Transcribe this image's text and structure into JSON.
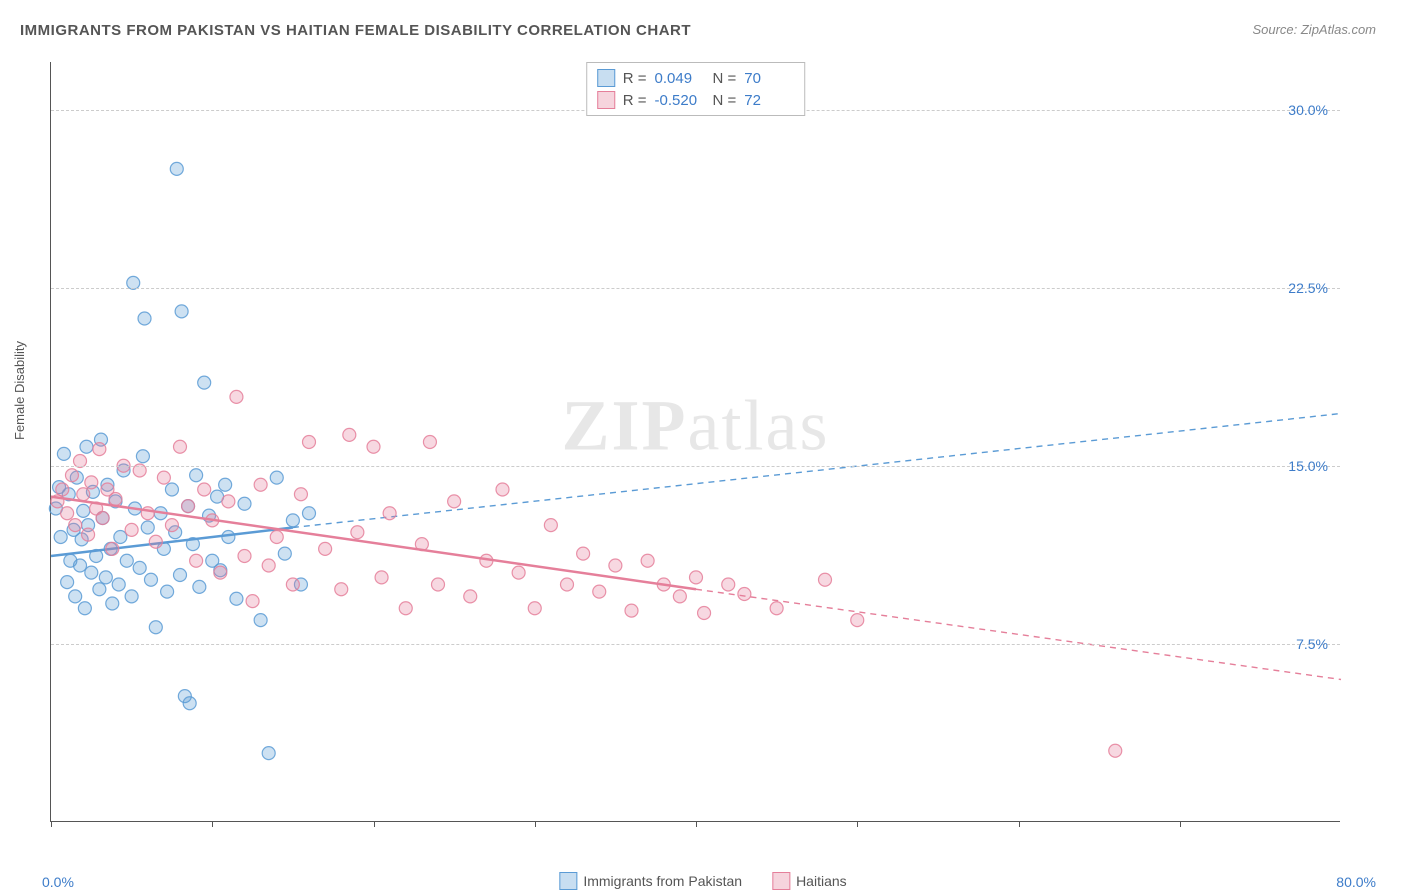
{
  "chart": {
    "title": "IMMIGRANTS FROM PAKISTAN VS HAITIAN FEMALE DISABILITY CORRELATION CHART",
    "source": "Source: ZipAtlas.com",
    "y_axis_title": "Female Disability",
    "watermark_bold": "ZIP",
    "watermark_light": "atlas",
    "background_color": "#ffffff",
    "axis_color": "#555555",
    "grid_color": "#cccccc",
    "value_color": "#3d7cc9",
    "xlim": [
      0,
      80
    ],
    "ylim": [
      0,
      32
    ],
    "x_min_label": "0.0%",
    "x_max_label": "80.0%",
    "x_ticks_at": [
      0,
      10,
      20,
      30,
      40,
      50,
      60,
      70
    ],
    "y_gridlines": [
      {
        "value": 7.5,
        "label": "7.5%"
      },
      {
        "value": 15.0,
        "label": "15.0%"
      },
      {
        "value": 22.5,
        "label": "22.5%"
      },
      {
        "value": 30.0,
        "label": "30.0%"
      }
    ],
    "marker_radius": 6.5,
    "marker_fill_opacity": 0.3,
    "marker_stroke_opacity": 0.85,
    "marker_stroke_width": 1.2,
    "trend_line_width": 2.5,
    "trend_dash_width": 1.4,
    "series": [
      {
        "name": "Immigrants from Pakistan",
        "color": "#5b9bd5",
        "R_label": "R =",
        "R_value": "0.049",
        "N_label": "N =",
        "N_value": "70",
        "trend_solid": {
          "x1": 0,
          "y1": 11.2,
          "x2": 15,
          "y2": 12.4
        },
        "trend_dash": {
          "x1": 15,
          "y1": 12.4,
          "x2": 80,
          "y2": 17.2
        },
        "points": [
          [
            0.3,
            13.2
          ],
          [
            0.5,
            14.1
          ],
          [
            0.6,
            12.0
          ],
          [
            0.8,
            15.5
          ],
          [
            1.0,
            10.1
          ],
          [
            1.1,
            13.8
          ],
          [
            1.2,
            11.0
          ],
          [
            1.4,
            12.3
          ],
          [
            1.5,
            9.5
          ],
          [
            1.6,
            14.5
          ],
          [
            1.8,
            10.8
          ],
          [
            1.9,
            11.9
          ],
          [
            2.0,
            13.1
          ],
          [
            2.1,
            9.0
          ],
          [
            2.2,
            15.8
          ],
          [
            2.3,
            12.5
          ],
          [
            2.5,
            10.5
          ],
          [
            2.6,
            13.9
          ],
          [
            2.8,
            11.2
          ],
          [
            3.0,
            9.8
          ],
          [
            3.1,
            16.1
          ],
          [
            3.2,
            12.8
          ],
          [
            3.4,
            10.3
          ],
          [
            3.5,
            14.2
          ],
          [
            3.7,
            11.5
          ],
          [
            3.8,
            9.2
          ],
          [
            4.0,
            13.5
          ],
          [
            4.2,
            10.0
          ],
          [
            4.3,
            12.0
          ],
          [
            4.5,
            14.8
          ],
          [
            4.7,
            11.0
          ],
          [
            5.0,
            9.5
          ],
          [
            5.1,
            22.7
          ],
          [
            5.2,
            13.2
          ],
          [
            5.5,
            10.7
          ],
          [
            5.7,
            15.4
          ],
          [
            5.8,
            21.2
          ],
          [
            6.0,
            12.4
          ],
          [
            6.2,
            10.2
          ],
          [
            6.5,
            8.2
          ],
          [
            6.8,
            13.0
          ],
          [
            7.0,
            11.5
          ],
          [
            7.2,
            9.7
          ],
          [
            7.5,
            14.0
          ],
          [
            7.7,
            12.2
          ],
          [
            7.8,
            27.5
          ],
          [
            8.0,
            10.4
          ],
          [
            8.1,
            21.5
          ],
          [
            8.3,
            5.3
          ],
          [
            8.5,
            13.3
          ],
          [
            8.6,
            5.0
          ],
          [
            8.8,
            11.7
          ],
          [
            9.0,
            14.6
          ],
          [
            9.2,
            9.9
          ],
          [
            9.5,
            18.5
          ],
          [
            9.8,
            12.9
          ],
          [
            10.0,
            11.0
          ],
          [
            10.3,
            13.7
          ],
          [
            10.5,
            10.6
          ],
          [
            10.8,
            14.2
          ],
          [
            11.0,
            12.0
          ],
          [
            11.5,
            9.4
          ],
          [
            12.0,
            13.4
          ],
          [
            13.0,
            8.5
          ],
          [
            13.5,
            2.9
          ],
          [
            14.0,
            14.5
          ],
          [
            14.5,
            11.3
          ],
          [
            15.0,
            12.7
          ],
          [
            15.5,
            10.0
          ],
          [
            16.0,
            13.0
          ]
        ]
      },
      {
        "name": "Haitians",
        "color": "#e57f9a",
        "R_label": "R =",
        "R_value": "-0.520",
        "N_label": "N =",
        "N_value": "72",
        "trend_solid": {
          "x1": 0,
          "y1": 13.7,
          "x2": 40,
          "y2": 9.8
        },
        "trend_dash": {
          "x1": 40,
          "y1": 9.8,
          "x2": 80,
          "y2": 6.0
        },
        "points": [
          [
            0.4,
            13.5
          ],
          [
            0.7,
            14.0
          ],
          [
            1.0,
            13.0
          ],
          [
            1.3,
            14.6
          ],
          [
            1.5,
            12.5
          ],
          [
            1.8,
            15.2
          ],
          [
            2.0,
            13.8
          ],
          [
            2.3,
            12.1
          ],
          [
            2.5,
            14.3
          ],
          [
            2.8,
            13.2
          ],
          [
            3.0,
            15.7
          ],
          [
            3.2,
            12.8
          ],
          [
            3.5,
            14.0
          ],
          [
            3.8,
            11.5
          ],
          [
            4.0,
            13.6
          ],
          [
            4.5,
            15.0
          ],
          [
            5.0,
            12.3
          ],
          [
            5.5,
            14.8
          ],
          [
            6.0,
            13.0
          ],
          [
            6.5,
            11.8
          ],
          [
            7.0,
            14.5
          ],
          [
            7.5,
            12.5
          ],
          [
            8.0,
            15.8
          ],
          [
            8.5,
            13.3
          ],
          [
            9.0,
            11.0
          ],
          [
            9.5,
            14.0
          ],
          [
            10.0,
            12.7
          ],
          [
            10.5,
            10.5
          ],
          [
            11.0,
            13.5
          ],
          [
            11.5,
            17.9
          ],
          [
            12.0,
            11.2
          ],
          [
            12.5,
            9.3
          ],
          [
            13.0,
            14.2
          ],
          [
            13.5,
            10.8
          ],
          [
            14.0,
            12.0
          ],
          [
            15.0,
            10.0
          ],
          [
            15.5,
            13.8
          ],
          [
            16.0,
            16.0
          ],
          [
            17.0,
            11.5
          ],
          [
            18.0,
            9.8
          ],
          [
            18.5,
            16.3
          ],
          [
            19.0,
            12.2
          ],
          [
            20.0,
            15.8
          ],
          [
            20.5,
            10.3
          ],
          [
            21.0,
            13.0
          ],
          [
            22.0,
            9.0
          ],
          [
            23.0,
            11.7
          ],
          [
            23.5,
            16.0
          ],
          [
            24.0,
            10.0
          ],
          [
            25.0,
            13.5
          ],
          [
            26.0,
            9.5
          ],
          [
            27.0,
            11.0
          ],
          [
            28.0,
            14.0
          ],
          [
            29.0,
            10.5
          ],
          [
            30.0,
            9.0
          ],
          [
            31.0,
            12.5
          ],
          [
            32.0,
            10.0
          ],
          [
            33.0,
            11.3
          ],
          [
            34.0,
            9.7
          ],
          [
            35.0,
            10.8
          ],
          [
            36.0,
            8.9
          ],
          [
            37.0,
            11.0
          ],
          [
            38.0,
            10.0
          ],
          [
            39.0,
            9.5
          ],
          [
            40.0,
            10.3
          ],
          [
            40.5,
            8.8
          ],
          [
            42.0,
            10.0
          ],
          [
            43.0,
            9.6
          ],
          [
            45.0,
            9.0
          ],
          [
            48.0,
            10.2
          ],
          [
            66.0,
            3.0
          ],
          [
            50.0,
            8.5
          ]
        ]
      }
    ],
    "bottom_legend": [
      {
        "label": "Immigrants from Pakistan",
        "color": "#5b9bd5"
      },
      {
        "label": "Haitians",
        "color": "#e57f9a"
      }
    ]
  }
}
